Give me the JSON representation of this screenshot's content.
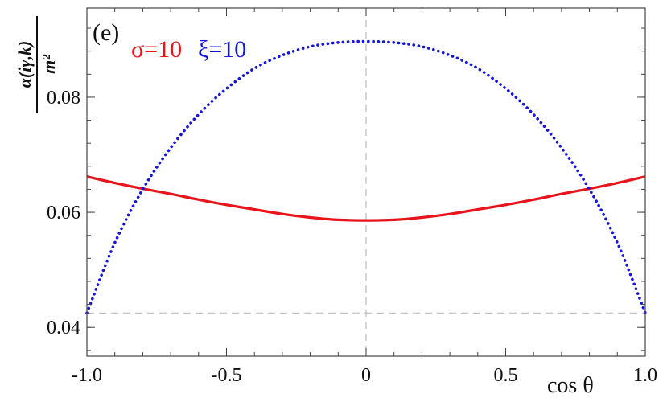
{
  "chart_data": {
    "type": "line",
    "panel_label": "(e)",
    "xlabel": "cos θ",
    "ylabel_numerator": "α(iγ,k)",
    "ylabel_denominator": "m²",
    "xlim": [
      -1.0,
      1.0
    ],
    "ylim": [
      0.035,
      0.0955
    ],
    "x_ticks": [
      -1.0,
      -0.5,
      0,
      0.5,
      1.0
    ],
    "x_tick_labels": [
      "-1.0",
      "-0.5",
      "0",
      "0.5",
      "1.0"
    ],
    "y_ticks": [
      0.04,
      0.06,
      0.08
    ],
    "y_tick_labels": [
      "0.04",
      "0.06",
      "0.08"
    ],
    "reference_lines": {
      "vertical_x": 0,
      "horizontal_y": 0.0425
    },
    "series": [
      {
        "name": "σ=10",
        "color": "#e8141b",
        "style": "solid",
        "x": [
          -1.0,
          -0.9,
          -0.8,
          -0.7,
          -0.6,
          -0.5,
          -0.4,
          -0.3,
          -0.2,
          -0.1,
          0.0,
          0.1,
          0.2,
          0.3,
          0.4,
          0.5,
          0.6,
          0.7,
          0.8,
          0.9,
          1.0
        ],
        "y": [
          0.0662,
          0.0651,
          0.0641,
          0.0632,
          0.0622,
          0.0613,
          0.0605,
          0.0597,
          0.0591,
          0.0587,
          0.0586,
          0.0587,
          0.0591,
          0.0597,
          0.0605,
          0.0613,
          0.0622,
          0.0632,
          0.0641,
          0.0651,
          0.0662
        ]
      },
      {
        "name": "ξ=10",
        "color": "#1414e0",
        "style": "dotted",
        "x": [
          -1.0,
          -0.9,
          -0.8,
          -0.7,
          -0.6,
          -0.5,
          -0.4,
          -0.3,
          -0.2,
          -0.1,
          0.0,
          0.1,
          0.2,
          0.3,
          0.4,
          0.5,
          0.6,
          0.7,
          0.8,
          0.9,
          1.0
        ],
        "y": [
          0.0425,
          0.0547,
          0.064,
          0.0712,
          0.077,
          0.0815,
          0.085,
          0.0873,
          0.0888,
          0.0895,
          0.0897,
          0.0895,
          0.0888,
          0.0873,
          0.085,
          0.0815,
          0.077,
          0.0712,
          0.064,
          0.0547,
          0.0425
        ]
      }
    ]
  }
}
